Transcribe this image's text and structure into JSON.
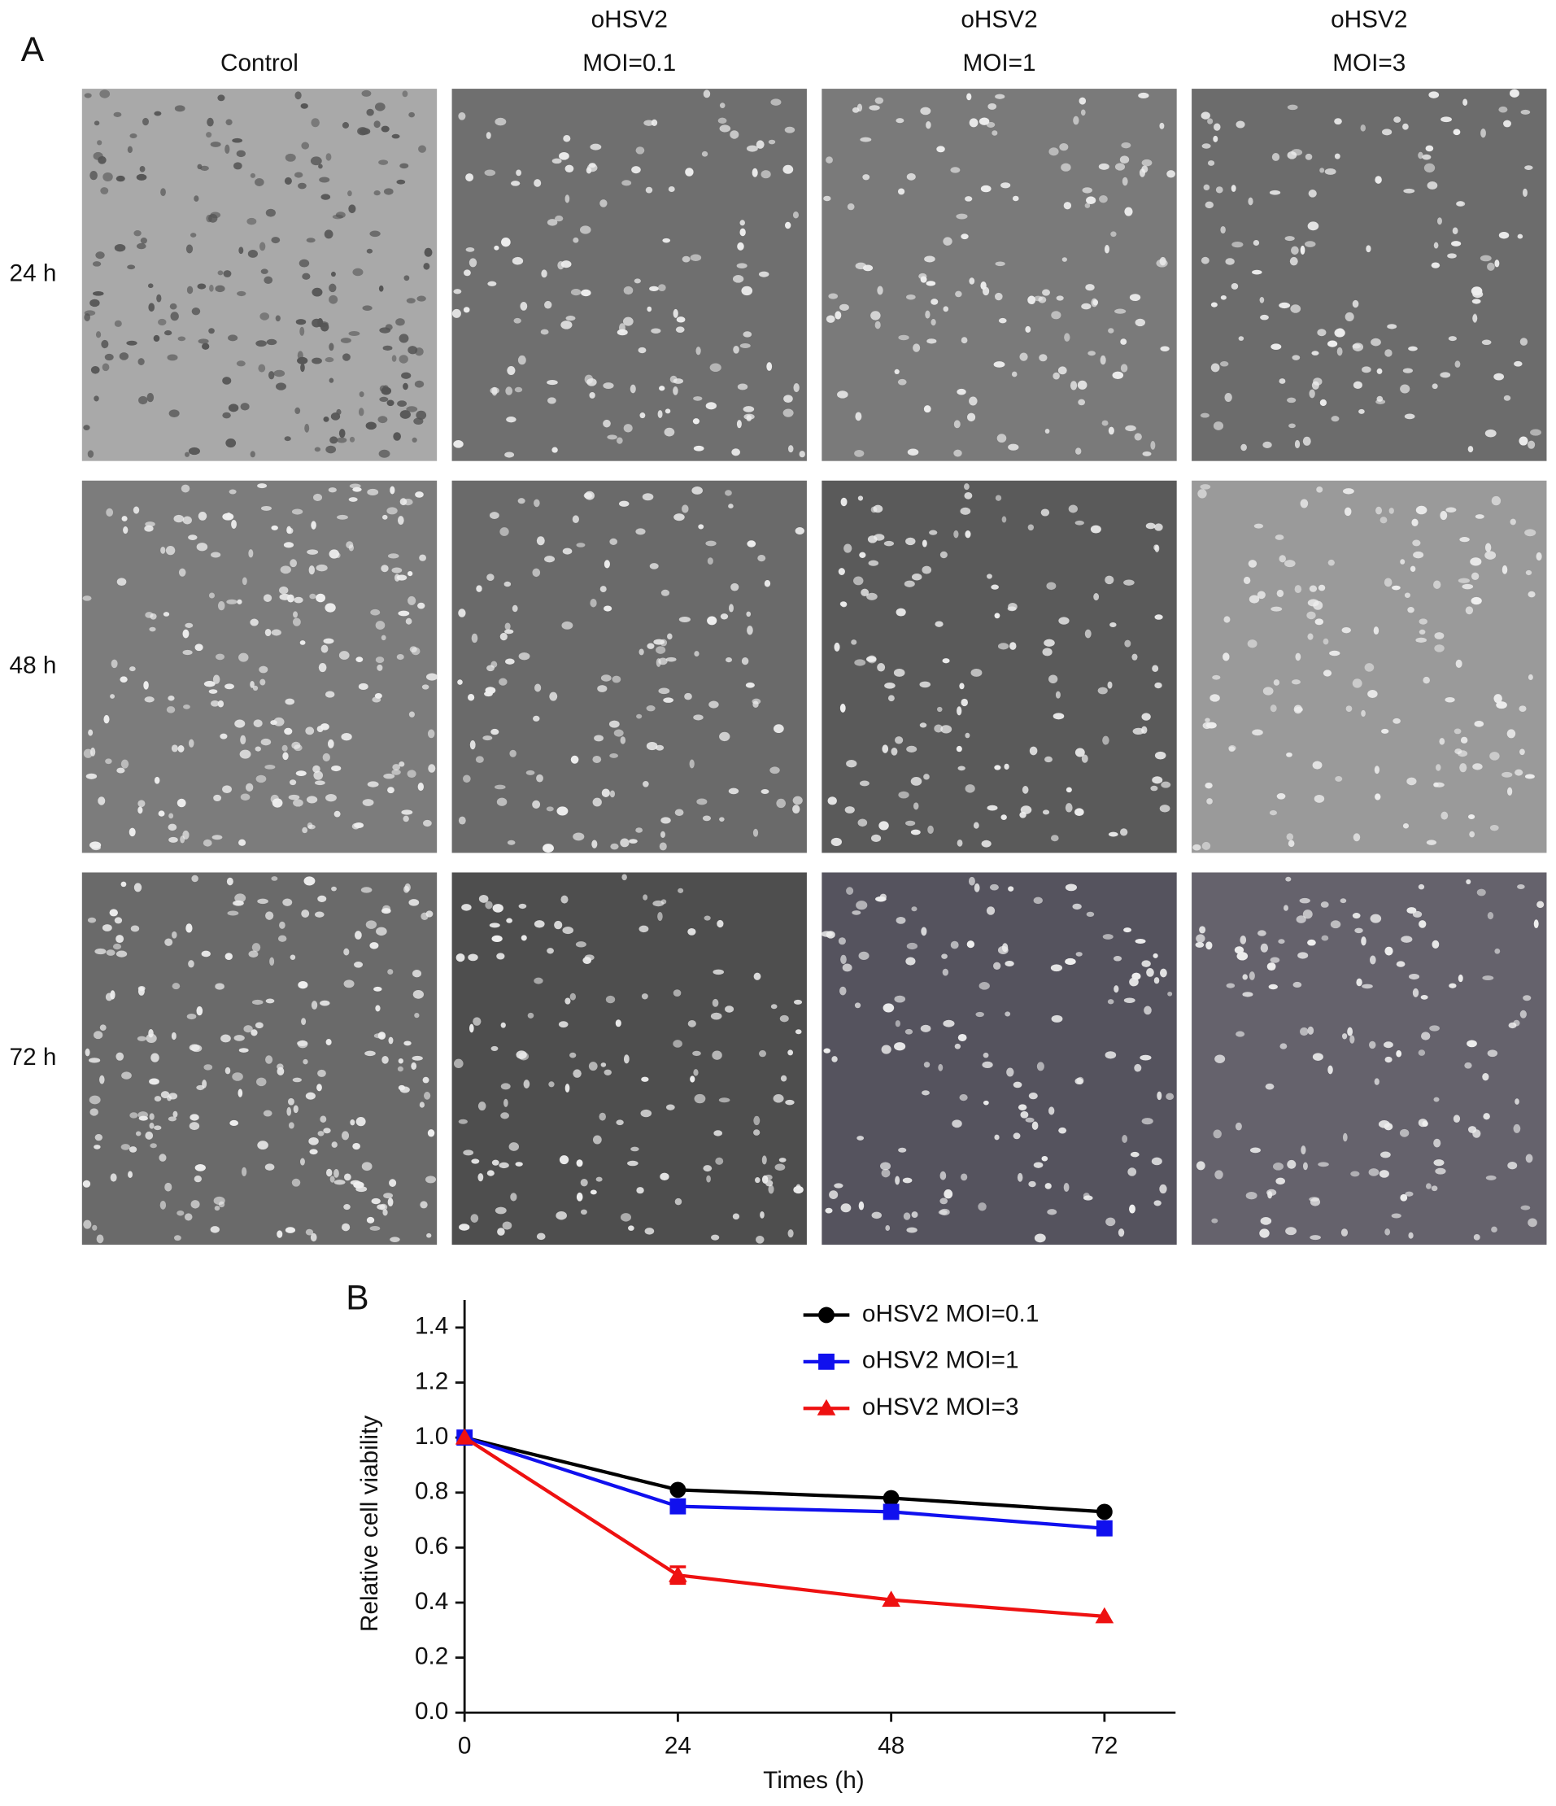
{
  "panel_a": {
    "label": "A",
    "columns": [
      [
        "Control"
      ],
      [
        "oHSV2",
        "MOI=0.1"
      ],
      [
        "oHSV2",
        "MOI=1"
      ],
      [
        "oHSV2",
        "MOI=3"
      ]
    ],
    "rows": [
      "24 h",
      "48 h",
      "72 h"
    ]
  },
  "panel_b": {
    "label": "B"
  },
  "chart_data": {
    "type": "line",
    "x": [
      0,
      24,
      48,
      72
    ],
    "xlim": [
      0,
      80
    ],
    "xticks": [
      0,
      24,
      48,
      72
    ],
    "ylim": [
      0,
      1.5
    ],
    "yticks": [
      {
        "value": 0,
        "label": "0.0"
      },
      0.2,
      0.4,
      0.6,
      0.8,
      {
        "value": 1,
        "label": "1.0"
      },
      1.2,
      1.4
    ],
    "xlabel": "Times (h)",
    "ylabel": "Relative cell viability",
    "grid": false,
    "legend": "top-right",
    "series": [
      {
        "name": "oHSV2 MOI=0.1",
        "color": "#000000",
        "marker": "circle",
        "values": [
          1.0,
          0.81,
          0.78,
          0.73
        ]
      },
      {
        "name": "oHSV2 MOI=1",
        "color": "#1010ee",
        "marker": "square",
        "values": [
          1.0,
          0.75,
          0.73,
          0.67
        ]
      },
      {
        "name": "oHSV2 MOI=3",
        "color": "#ee1111",
        "marker": "triangle",
        "values": [
          1.0,
          0.5,
          0.41,
          0.35
        ],
        "errors": [
          null,
          0.03,
          null,
          null
        ]
      }
    ]
  }
}
